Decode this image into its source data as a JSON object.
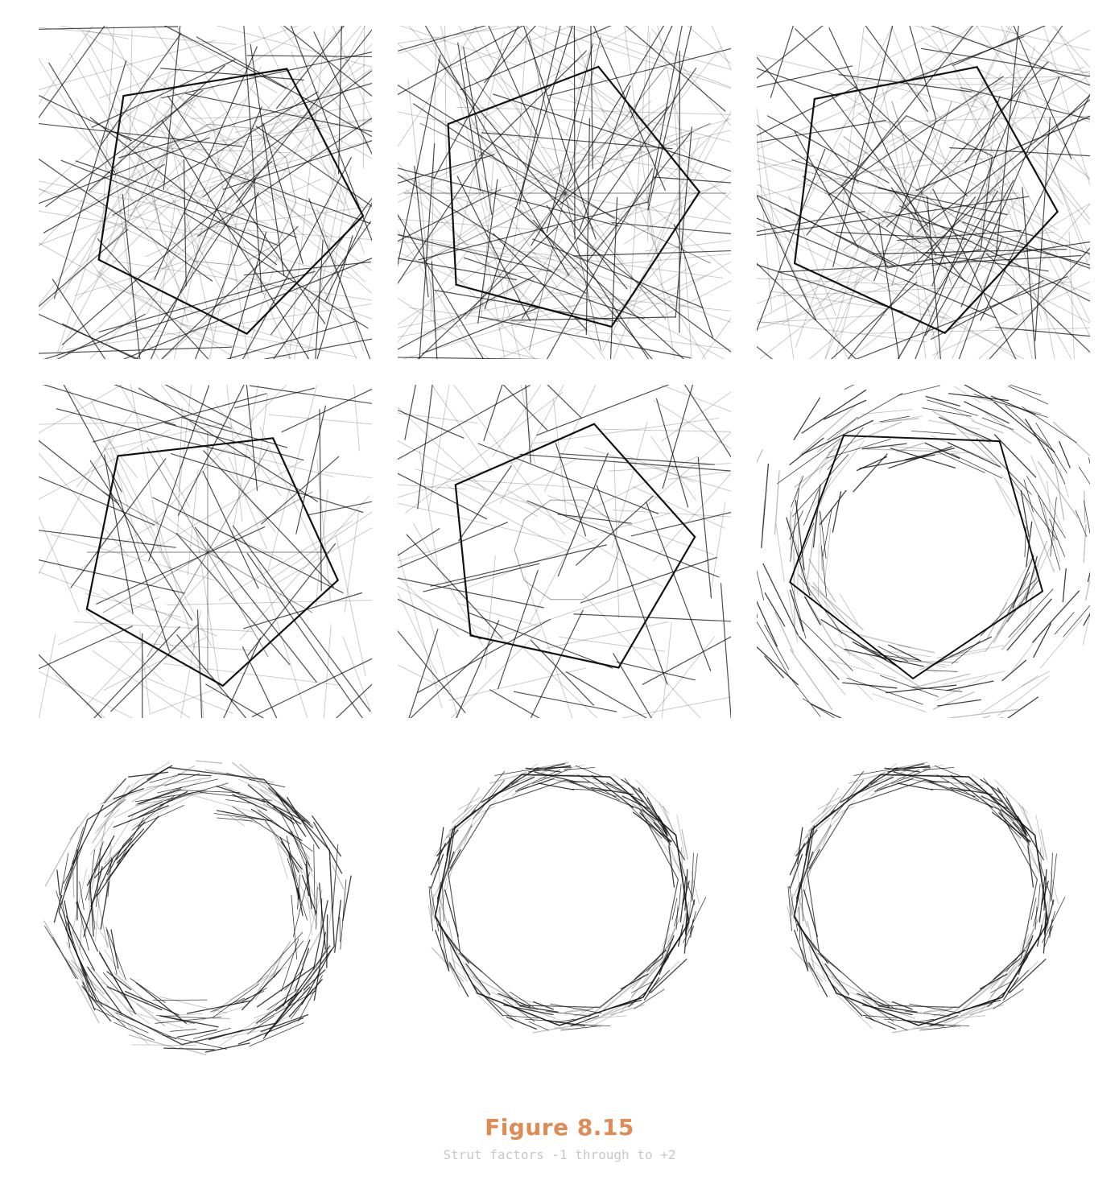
{
  "figure": {
    "label": "Figure 8.15",
    "caption": "Strut factors -1 through to +2"
  },
  "colors": {
    "accent": "#e08a55",
    "caption_gray": "#c8c8c8",
    "ink": "#111111"
  },
  "panels": [
    {
      "id": "panel-1",
      "row": 1,
      "col": 1,
      "style": "dense-lines"
    },
    {
      "id": "panel-2",
      "row": 1,
      "col": 2,
      "style": "dense-lines"
    },
    {
      "id": "panel-3",
      "row": 1,
      "col": 3,
      "style": "dense-lines"
    },
    {
      "id": "panel-4",
      "row": 2,
      "col": 1,
      "style": "mixed"
    },
    {
      "id": "panel-5",
      "row": 2,
      "col": 2,
      "style": "mixed"
    },
    {
      "id": "panel-6",
      "row": 2,
      "col": 3,
      "style": "open-ring"
    },
    {
      "id": "panel-7",
      "row": 3,
      "col": 1,
      "style": "ring-large"
    },
    {
      "id": "panel-8",
      "row": 3,
      "col": 2,
      "style": "ring-small"
    },
    {
      "id": "panel-9",
      "row": 3,
      "col": 3,
      "style": "ring-small"
    }
  ]
}
